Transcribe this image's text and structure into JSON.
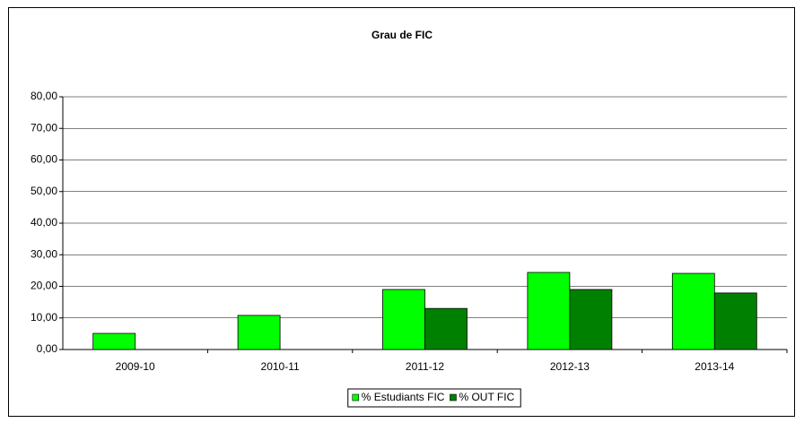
{
  "chart_data": {
    "type": "bar",
    "title": "Grau de FIC",
    "categories": [
      "2009-10",
      "2010-11",
      "2011-12",
      "2012-13",
      "2013-14"
    ],
    "series": [
      {
        "name": "% Estudiants FIC",
        "color": "#00ff00",
        "values": [
          5.1,
          10.8,
          19.0,
          24.4,
          24.1
        ]
      },
      {
        "name": "% OUT FIC",
        "color": "#008000",
        "values": [
          0,
          0,
          13.0,
          19.0,
          17.9
        ]
      }
    ],
    "ylim": [
      0,
      80
    ],
    "yticks": [
      {
        "value": 0,
        "label": "0,00"
      },
      {
        "value": 10,
        "label": "10,00"
      },
      {
        "value": 20,
        "label": "20,00"
      },
      {
        "value": 30,
        "label": "30,00"
      },
      {
        "value": 40,
        "label": "40,00"
      },
      {
        "value": 50,
        "label": "50,00"
      },
      {
        "value": 60,
        "label": "60,00"
      },
      {
        "value": 70,
        "label": "70,00"
      },
      {
        "value": 80,
        "label": "80,00"
      }
    ],
    "grid": true,
    "legend": "bottom"
  }
}
